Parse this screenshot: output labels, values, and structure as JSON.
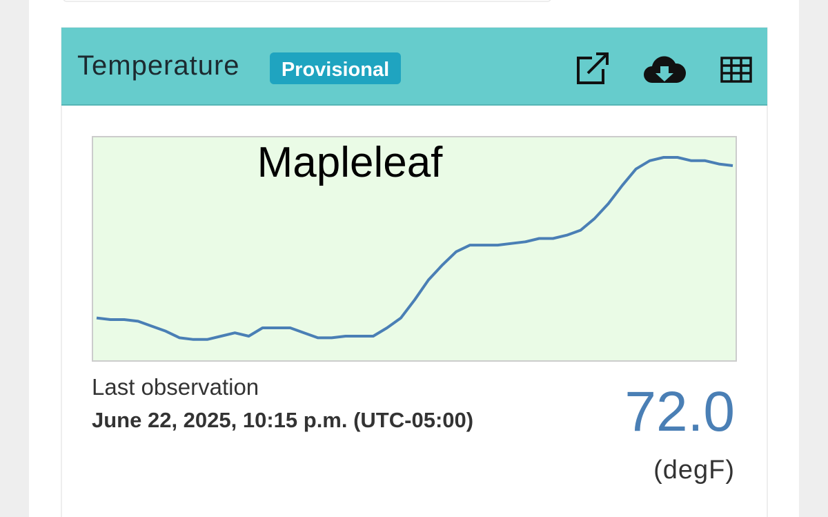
{
  "header": {
    "title": "Temperature",
    "badge": "Provisional"
  },
  "chart_data": {
    "type": "line",
    "title": "Mapleleaf",
    "color": "#4a7fb5",
    "ylim": [
      60.2,
      73.75
    ],
    "values": [
      62.8,
      62.7,
      62.7,
      62.6,
      62.3,
      62.0,
      61.6,
      61.5,
      61.5,
      61.7,
      61.9,
      61.7,
      62.2,
      62.2,
      62.2,
      61.9,
      61.6,
      61.6,
      61.7,
      61.7,
      61.7,
      62.2,
      62.8,
      63.9,
      65.1,
      66.0,
      66.8,
      67.2,
      67.2,
      67.2,
      67.3,
      67.4,
      67.6,
      67.6,
      67.8,
      68.1,
      68.8,
      69.7,
      70.8,
      71.8,
      72.3,
      72.5,
      72.5,
      72.3,
      72.3,
      72.1,
      72.0
    ]
  },
  "observation": {
    "label": "Last observation",
    "time": "June 22, 2025, 10:15 p.m. (UTC-05:00)",
    "value": "72.0",
    "unit": "(degF)"
  }
}
